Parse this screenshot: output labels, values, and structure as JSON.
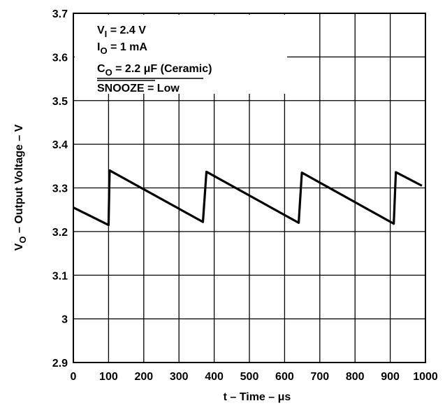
{
  "chart_data": {
    "type": "line",
    "title": "",
    "xlabel": {
      "main": "t – Time – ",
      "unit_symbol": "μ",
      "unit_rest": "s"
    },
    "ylabel": {
      "sym": "V",
      "sub": "O",
      "rest": " – Output Voltage – V"
    },
    "xlim": [
      0,
      1000
    ],
    "ylim": [
      2.9,
      3.7
    ],
    "x_ticks": [
      0,
      100,
      200,
      300,
      400,
      500,
      600,
      700,
      800,
      900,
      1000
    ],
    "x_tick_labels": [
      "0",
      "100",
      "200",
      "300",
      "400",
      "500",
      "600",
      "700",
      "800",
      "900",
      "1000"
    ],
    "y_ticks": [
      2.9,
      3.0,
      3.1,
      3.2,
      3.3,
      3.4,
      3.5,
      3.6,
      3.7
    ],
    "y_tick_labels": [
      "2.9",
      "3",
      "3.1",
      "3.2",
      "3.3",
      "3.4",
      "3.5",
      "3.6",
      "3.7"
    ],
    "grid": true,
    "legend": "none",
    "annotations": [
      {
        "sym": "V",
        "sub": "I",
        "rest": " = 2.4 V"
      },
      {
        "sym": "I",
        "sub": "O",
        "rest": " = 1 mA"
      },
      {
        "sym": "C",
        "sub": "O",
        "rest": " = 2.2 ",
        "unit_symbol": "μ",
        "unit_rest": "F (Ceramic)"
      },
      {
        "sym": "",
        "sub": "",
        "rest": "SNOOZE = Low"
      }
    ],
    "series": [
      {
        "color": "#000000",
        "x": [
          0,
          100,
          103,
          368,
          378,
          640,
          649,
          910,
          916,
          990
        ],
        "y": [
          3.255,
          3.215,
          3.34,
          3.222,
          3.337,
          3.22,
          3.335,
          3.218,
          3.336,
          3.305
        ]
      }
    ]
  }
}
